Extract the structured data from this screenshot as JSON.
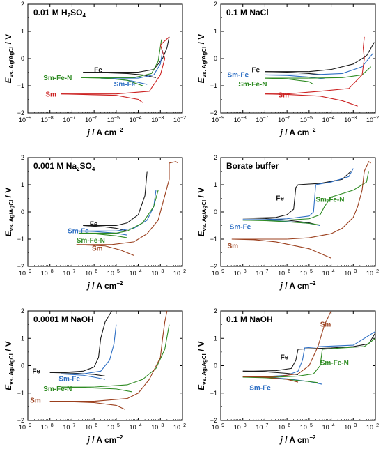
{
  "chart_data": [
    {
      "type": "line",
      "title": "0.01 M H2SO4",
      "title_parts": [
        "0.01 M H",
        "2",
        "SO",
        "4"
      ],
      "xlabel": "j / A cm−2",
      "ylabel": "Evs. Ag/AgCl / V",
      "x_log_range": [
        -9,
        -2
      ],
      "ylim": [
        -2,
        2
      ],
      "x_tick_labels": [
        "10-9",
        "10-8",
        "10-7",
        "10-6",
        "10-5",
        "10-4",
        "10-3",
        "10-2"
      ],
      "y_tick_labels": [
        "-2",
        "-1",
        "0",
        "1",
        "2"
      ],
      "series": [
        {
          "name": "Fe",
          "color": "#1a1a1a",
          "label_pos": [
            -6.0,
            -0.42
          ],
          "x": [
            -4.0,
            -3.3,
            -2.9,
            -2.7,
            -2.6
          ],
          "y": [
            -0.5,
            -0.4,
            0.0,
            0.4,
            0.8
          ],
          "x2": [
            -6.5,
            -5.5,
            -4.5,
            -3.8,
            -3.2
          ],
          "y2": [
            -0.5,
            -0.52,
            -0.55,
            -0.6,
            -0.7
          ]
        },
        {
          "name": "Sm-Fe",
          "color": "#2e6fc4",
          "label_pos": [
            -5.1,
            -0.95
          ],
          "x": [
            -4.0,
            -3.3,
            -3.0,
            -2.9
          ],
          "y": [
            -0.72,
            -0.6,
            -0.2,
            0.3
          ],
          "x2": [
            -5.7,
            -5.0,
            -4.3,
            -3.6
          ],
          "y2": [
            -0.72,
            -0.75,
            -0.82,
            -0.95
          ]
        },
        {
          "name": "Sm-Fe-N",
          "color": "#2e8b22",
          "label_pos": [
            -8.3,
            -0.72
          ],
          "x": [
            -4.2,
            -3.4,
            -3.1,
            -2.95
          ],
          "y": [
            -0.7,
            -0.55,
            -0.1,
            0.7
          ],
          "x2": [
            -6.6,
            -5.5,
            -4.5,
            -3.8
          ],
          "y2": [
            -0.7,
            -0.72,
            -0.8,
            -1.0
          ]
        },
        {
          "name": "Sm",
          "color": "#cc2222",
          "label_pos": [
            -8.2,
            -1.32
          ],
          "x": [
            -5.0,
            -3.5,
            -3.0,
            -2.8,
            -3.0,
            -2.6
          ],
          "y": [
            -1.3,
            -1.2,
            -0.6,
            0.0,
            0.5,
            0.8
          ],
          "x2": [
            -7.5,
            -6.5,
            -5.0,
            -4.0,
            -3.8
          ],
          "y2": [
            -1.3,
            -1.32,
            -1.35,
            -1.5,
            -1.62
          ]
        }
      ]
    },
    {
      "type": "line",
      "title": "0.1 M NaCl",
      "title_parts": [
        "0.1 M NaCl"
      ],
      "xlabel": "j / A cm−2",
      "ylabel": "Evs. Ag/AgCl / V",
      "x_log_range": [
        -9,
        -2
      ],
      "ylim": [
        -2,
        2
      ],
      "x_tick_labels": [
        "10-9",
        "10-8",
        "10-7",
        "10-6",
        "10-5",
        "10-4",
        "10-3",
        "10-2"
      ],
      "y_tick_labels": [
        "-2",
        "-1",
        "0",
        "1",
        "2"
      ],
      "series": [
        {
          "name": "Fe",
          "color": "#1a1a1a",
          "label_pos": [
            -7.6,
            -0.42
          ],
          "x": [
            -5.0,
            -4.0,
            -3.0,
            -2.4,
            -2.05
          ],
          "y": [
            -0.48,
            -0.4,
            -0.2,
            0.1,
            0.6
          ],
          "x2": [
            -7.0,
            -6.0,
            -5.0,
            -4.3
          ],
          "y2": [
            -0.48,
            -0.5,
            -0.55,
            -0.6
          ]
        },
        {
          "name": "Sm-Fe",
          "color": "#2e6fc4",
          "label_pos": [
            -8.7,
            -0.6
          ],
          "x": [
            -5.0,
            -3.5,
            -2.6,
            -2.1
          ],
          "y": [
            -0.6,
            -0.55,
            -0.3,
            0.2
          ],
          "x2": [
            -7.0,
            -6.0,
            -5.0,
            -4.3
          ],
          "y2": [
            -0.6,
            -0.62,
            -0.68,
            -0.75
          ]
        },
        {
          "name": "Sm-Fe-N",
          "color": "#2e8b22",
          "label_pos": [
            -8.2,
            -0.95
          ],
          "x": [
            -5.0,
            -3.5,
            -2.6,
            -2.2
          ],
          "y": [
            -0.72,
            -0.7,
            -0.6,
            -0.3
          ],
          "x2": [
            -7.0,
            -6.0,
            -5.0,
            -4.8
          ],
          "y2": [
            -0.72,
            -0.75,
            -0.85,
            -0.95
          ]
        },
        {
          "name": "Sm",
          "color": "#cc2222",
          "label_pos": [
            -6.4,
            -1.35
          ],
          "x": [
            -6.0,
            -4.5,
            -3.2,
            -2.6,
            -2.5,
            -2.55,
            -2.5
          ],
          "y": [
            -1.3,
            -1.2,
            -1.1,
            -0.6,
            0.0,
            0.4,
            0.8
          ],
          "x2": [
            -7.0,
            -6.0,
            -4.5,
            -3.5,
            -2.8
          ],
          "y2": [
            -1.3,
            -1.32,
            -1.38,
            -1.55,
            -1.75
          ]
        }
      ]
    },
    {
      "type": "line",
      "title": "0.001 M Na2SO4",
      "title_parts": [
        "0.001 M Na",
        "2",
        "SO",
        "4"
      ],
      "xlabel": "j / A cm−2",
      "ylabel": "Evs. Ag/AgCl / V",
      "x_log_range": [
        -9,
        -2
      ],
      "ylim": [
        -2,
        2
      ],
      "x_tick_labels": [
        "10-9",
        "10-8",
        "10-7",
        "10-6",
        "10-5",
        "10-4",
        "10-3",
        "10-2"
      ],
      "y_tick_labels": [
        "-2",
        "-1",
        "0",
        "1",
        "2"
      ],
      "series": [
        {
          "name": "Fe",
          "color": "#1a1a1a",
          "label_pos": [
            -6.2,
            -0.45
          ],
          "x": [
            -5.0,
            -4.5,
            -4.0,
            -3.7,
            -3.6
          ],
          "y": [
            -0.5,
            -0.4,
            -0.1,
            0.6,
            1.5
          ],
          "x2": [
            -6.5,
            -5.5,
            -5.0,
            -4.5
          ],
          "y2": [
            -0.5,
            -0.55,
            -0.6,
            -0.7
          ]
        },
        {
          "name": "Sm-Fe",
          "color": "#2e6fc4",
          "label_pos": [
            -7.2,
            -0.7
          ],
          "x": [
            -5.0,
            -4.2,
            -3.6,
            -3.3,
            -3.2
          ],
          "y": [
            -0.7,
            -0.6,
            -0.3,
            0.2,
            0.8
          ],
          "x2": [
            -7.0,
            -6.0,
            -5.0,
            -4.5
          ],
          "y2": [
            -0.7,
            -0.72,
            -0.78,
            -0.85
          ]
        },
        {
          "name": "Sm-Fe-N",
          "color": "#2e8b22",
          "label_pos": [
            -6.8,
            -1.05
          ],
          "x": [
            -5.0,
            -4.5,
            -3.8,
            -3.3,
            -3.1
          ],
          "y": [
            -0.78,
            -0.7,
            -0.4,
            0.2,
            0.8
          ],
          "x2": [
            -6.7,
            -6.0,
            -5.0,
            -4.5
          ],
          "y2": [
            -0.78,
            -0.8,
            -0.88,
            -0.95
          ]
        },
        {
          "name": "Sm",
          "color": "#9b3f1d",
          "label_pos": [
            -6.1,
            -1.35
          ],
          "x": [
            -5.2,
            -4.2,
            -3.6,
            -3.1,
            -2.9,
            -2.6,
            -2.6,
            -2.3,
            -2.2
          ],
          "y": [
            -1.2,
            -1.1,
            -0.8,
            -0.3,
            0.3,
            1.2,
            1.8,
            1.85,
            1.8
          ],
          "x2": [
            -6.8,
            -5.5,
            -4.8,
            -4.2
          ],
          "y2": [
            -1.2,
            -1.25,
            -1.4,
            -1.6
          ]
        }
      ]
    },
    {
      "type": "line",
      "title": "Borate buffer",
      "title_parts": [
        "Borate buffer"
      ],
      "xlabel": "j / A cm−2",
      "ylabel": "Evs. Ag/AgCl / V",
      "x_log_range": [
        -9,
        -2
      ],
      "ylim": [
        -2,
        2
      ],
      "x_tick_labels": [
        "10-9",
        "10-8",
        "10-7",
        "10-6",
        "10-5",
        "10-4",
        "10-3",
        "10-2"
      ],
      "y_tick_labels": [
        "-2",
        "-1",
        "0",
        "1",
        "2"
      ],
      "series": [
        {
          "name": "Fe",
          "color": "#1a1a1a",
          "label_pos": [
            -6.5,
            0.5
          ],
          "x": [
            -7.5,
            -6.5,
            -6.0,
            -5.7,
            -5.6,
            -5.5,
            -4.5,
            -3.5,
            -3.1
          ],
          "y": [
            -0.22,
            -0.2,
            -0.1,
            0.1,
            0.9,
            1.0,
            1.05,
            1.2,
            1.5
          ],
          "x2": [
            -8.0,
            -7.0,
            -6.0,
            -5.0,
            -4.5
          ],
          "y2": [
            -0.22,
            -0.24,
            -0.3,
            -0.4,
            -0.5
          ]
        },
        {
          "name": "Sm-Fe",
          "color": "#2e6fc4",
          "label_pos": [
            -8.6,
            -0.55
          ],
          "x": [
            -7.0,
            -6.0,
            -5.0,
            -4.8,
            -4.7,
            -4.0,
            -3.2,
            -3.0
          ],
          "y": [
            -0.28,
            -0.25,
            -0.15,
            0.0,
            1.0,
            1.1,
            1.3,
            1.6
          ],
          "x2": [
            -8.0,
            -7.0,
            -6.0,
            -5.0,
            -4.5
          ],
          "y2": [
            -0.28,
            -0.3,
            -0.35,
            -0.42,
            -0.5
          ]
        },
        {
          "name": "Sm-Fe-N",
          "color": "#2e8b22",
          "label_pos": [
            -4.7,
            0.45
          ],
          "x": [
            -6.0,
            -5.0,
            -4.5,
            -4.3,
            -4.0,
            -3.0,
            -2.4,
            -2.3
          ],
          "y": [
            -0.3,
            -0.25,
            -0.1,
            0.2,
            0.55,
            0.8,
            1.1,
            1.5
          ],
          "x2": [
            -8.0,
            -7.0,
            -6.0,
            -5.0,
            -4.5
          ],
          "y2": [
            -0.3,
            -0.32,
            -0.36,
            -0.42,
            -0.48
          ]
        },
        {
          "name": "Sm",
          "color": "#9b3f1d",
          "label_pos": [
            -8.7,
            -1.25
          ],
          "x": [
            -6.0,
            -5.0,
            -4.0,
            -3.5,
            -3.0,
            -2.8,
            -2.6,
            -2.5,
            -2.3,
            -2.2
          ],
          "y": [
            -1.0,
            -0.95,
            -0.8,
            -0.6,
            -0.2,
            0.2,
            0.8,
            1.5,
            1.85,
            1.8
          ],
          "x2": [
            -8.5,
            -7.5,
            -6.5,
            -5.0,
            -4.0
          ],
          "y2": [
            -1.0,
            -1.02,
            -1.1,
            -1.35,
            -1.7
          ]
        }
      ]
    },
    {
      "type": "line",
      "title": "0.0001 M NaOH",
      "title_parts": [
        "0.0001 M NaOH"
      ],
      "xlabel": "j / A cm−2",
      "ylabel": "Evs. Ag/AgCl / V",
      "x_log_range": [
        -9,
        -2
      ],
      "ylim": [
        -2,
        2
      ],
      "x_tick_labels": [
        "10-9",
        "10-8",
        "10-7",
        "10-6",
        "10-5",
        "10-4",
        "10-3",
        "10-2"
      ],
      "y_tick_labels": [
        "-2",
        "-1",
        "0",
        "1",
        "2"
      ],
      "series": [
        {
          "name": "Fe",
          "color": "#1a1a1a",
          "label_pos": [
            -8.8,
            -0.2
          ],
          "x": [
            -7.5,
            -6.5,
            -6.0,
            -5.8,
            -5.7,
            -5.5,
            -5.2
          ],
          "y": [
            -0.25,
            -0.2,
            -0.05,
            0.3,
            1.0,
            1.6,
            2.0
          ],
          "x2": [
            -8.0,
            -7.0,
            -6.0,
            -5.5
          ],
          "y2": [
            -0.25,
            -0.27,
            -0.32,
            -0.38
          ]
        },
        {
          "name": "Sm-Fe",
          "color": "#2e6fc4",
          "label_pos": [
            -7.6,
            -0.48
          ],
          "x": [
            -6.5,
            -5.7,
            -5.3,
            -5.1,
            -5.0
          ],
          "y": [
            -0.3,
            -0.2,
            0.2,
            0.8,
            1.5
          ],
          "x2": [
            -7.5,
            -6.5,
            -6.0,
            -5.5
          ],
          "y2": [
            -0.3,
            -0.35,
            -0.42,
            -0.5
          ]
        },
        {
          "name": "Sm-Fe-N",
          "color": "#2e8b22",
          "label_pos": [
            -8.3,
            -0.85
          ],
          "x": [
            -6.0,
            -4.5,
            -3.8,
            -3.2,
            -2.8,
            -2.6
          ],
          "y": [
            -0.78,
            -0.7,
            -0.5,
            -0.1,
            0.6,
            1.5
          ],
          "x2": [
            -7.5,
            -6.5,
            -5.0,
            -4.3
          ],
          "y2": [
            -0.78,
            -0.8,
            -0.85,
            -0.95
          ]
        },
        {
          "name": "Sm",
          "color": "#9b3f1d",
          "label_pos": [
            -8.9,
            -1.28
          ],
          "x": [
            -6.0,
            -4.5,
            -4.0,
            -3.5,
            -3.0,
            -2.9,
            -2.8,
            -2.7
          ],
          "y": [
            -1.3,
            -1.2,
            -1.0,
            -0.5,
            0.3,
            1.0,
            1.6,
            2.0
          ],
          "x2": [
            -8.0,
            -7.0,
            -6.0,
            -5.0,
            -4.6
          ],
          "y2": [
            -1.3,
            -1.32,
            -1.35,
            -1.45,
            -1.6
          ]
        }
      ]
    },
    {
      "type": "line",
      "title": "0.1 M NaOH",
      "title_parts": [
        "0.1 M NaOH"
      ],
      "xlabel": "j / A cm−2",
      "ylabel": "Evs. Ag/AgCl / V",
      "x_log_range": [
        -9,
        -2
      ],
      "ylim": [
        -2,
        2
      ],
      "x_tick_labels": [
        "10-9",
        "10-8",
        "10-7",
        "10-6",
        "10-5",
        "10-4",
        "10-3",
        "10-2"
      ],
      "y_tick_labels": [
        "-2",
        "-1",
        "0",
        "1",
        "2"
      ],
      "series": [
        {
          "name": "Fe",
          "color": "#1a1a1a",
          "label_pos": [
            -6.3,
            0.3
          ],
          "x": [
            -7.5,
            -6.5,
            -5.8,
            -5.6,
            -5.5,
            -5.0,
            -4.0,
            -3.0,
            -2.3,
            -2.0
          ],
          "y": [
            -0.2,
            -0.18,
            -0.1,
            0.2,
            0.6,
            0.62,
            0.65,
            0.7,
            0.8,
            1.2
          ],
          "x2": [
            -8.0,
            -7.0,
            -6.0,
            -5.5
          ],
          "y2": [
            -0.2,
            -0.22,
            -0.28,
            -0.33
          ]
        },
        {
          "name": "Sm-Fe",
          "color": "#2e6fc4",
          "label_pos": [
            -7.7,
            -0.82
          ],
          "x": [
            -7.0,
            -6.0,
            -5.5,
            -5.3,
            -5.2,
            -4.5,
            -3.0,
            -2.0
          ],
          "y": [
            -0.4,
            -0.35,
            -0.2,
            0.2,
            0.65,
            0.7,
            0.75,
            1.25
          ],
          "x2": [
            -8.0,
            -7.0,
            -6.0,
            -5.0,
            -4.4
          ],
          "y2": [
            -0.4,
            -0.42,
            -0.48,
            -0.58,
            -0.68
          ]
        },
        {
          "name": "Sm-Fe-N",
          "color": "#2e8b22",
          "label_pos": [
            -4.5,
            0.1
          ],
          "x": [
            -6.5,
            -5.5,
            -4.8,
            -4.5,
            -4.4,
            -3.5,
            -2.5,
            -2.0
          ],
          "y": [
            -0.42,
            -0.38,
            -0.3,
            0.0,
            0.6,
            0.65,
            0.7,
            1.0
          ],
          "x2": [
            -8.0,
            -7.0,
            -6.0,
            -5.0,
            -4.6
          ],
          "y2": [
            -0.42,
            -0.44,
            -0.5,
            -0.58,
            -0.62
          ]
        },
        {
          "name": "Sm",
          "color": "#9b3f1d",
          "label_pos": [
            -4.5,
            1.5
          ],
          "x": [
            -6.5,
            -5.5,
            -5.0,
            -4.6,
            -4.3,
            -4.0
          ],
          "y": [
            -0.4,
            -0.3,
            0.0,
            0.7,
            1.5,
            2.0
          ],
          "x2": [
            -8.0,
            -7.0,
            -6.0,
            -5.5
          ],
          "y2": [
            -0.4,
            -0.42,
            -0.5,
            -0.6
          ]
        }
      ]
    }
  ]
}
